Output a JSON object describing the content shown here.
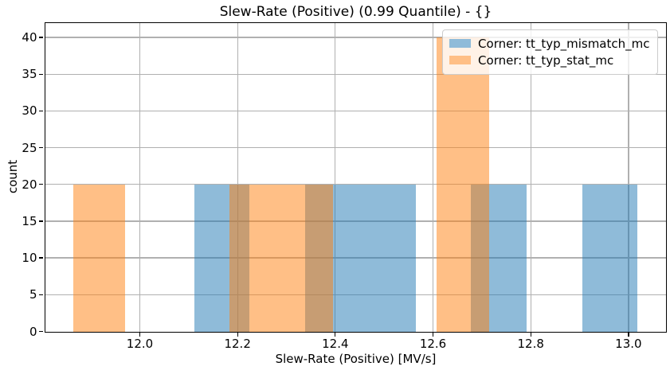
{
  "chart_data": {
    "type": "bar",
    "subtype": "histogram",
    "title": "Slew-Rate (Positive) (0.99 Quantile) - {}",
    "xlabel": "Slew-Rate (Positive) [MV/s]",
    "ylabel": "count",
    "xlim": [
      11.806,
      13.076
    ],
    "ylim": [
      0,
      42
    ],
    "xticks": [
      12.0,
      12.2,
      12.4,
      12.6,
      12.8,
      13.0
    ],
    "xtick_labels": [
      "12.0",
      "12.2",
      "12.4",
      "12.6",
      "12.8",
      "13.0"
    ],
    "yticks": [
      0,
      5,
      10,
      15,
      20,
      25,
      30,
      35,
      40
    ],
    "grid": true,
    "grid_color": "#b0b0b0",
    "spine_color": "#000000",
    "text_color": "#000000",
    "background_color": "#ffffff",
    "legend": {
      "position": "upper right"
    },
    "series": [
      {
        "name": "Corner: tt_typ_mismatch_mc",
        "base_color": "#1f77b4",
        "fill": "rgba(31,119,180,0.5)",
        "legend_swatch": "#8fbbd9",
        "alpha": 0.5,
        "bin_edges": [
          12.111,
          12.224,
          12.338,
          12.451,
          12.565,
          12.678,
          12.791,
          12.905,
          13.018
        ],
        "counts": [
          20,
          0,
          20,
          20,
          0,
          20,
          0,
          20
        ]
      },
      {
        "name": "Corner: tt_typ_stat_mc",
        "base_color": "#ff7f0e",
        "fill": "rgba(255,127,14,0.5)",
        "legend_swatch": "#ffbf86",
        "alpha": 0.5,
        "bin_edges": [
          11.864,
          11.97,
          12.076,
          12.183,
          12.289,
          12.395,
          12.502,
          12.608,
          12.715,
          12.821,
          12.927
        ],
        "counts": [
          20,
          0,
          0,
          20,
          20,
          0,
          0,
          40,
          0,
          0
        ]
      }
    ]
  }
}
